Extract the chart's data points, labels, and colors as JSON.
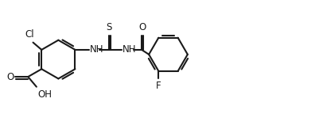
{
  "bg_color": "#ffffff",
  "line_color": "#1a1a1a",
  "line_width": 1.5,
  "font_size": 8.5,
  "fig_width": 4.02,
  "fig_height": 1.58,
  "xlim": [
    0,
    10.2
  ],
  "ylim": [
    0,
    3.9
  ]
}
